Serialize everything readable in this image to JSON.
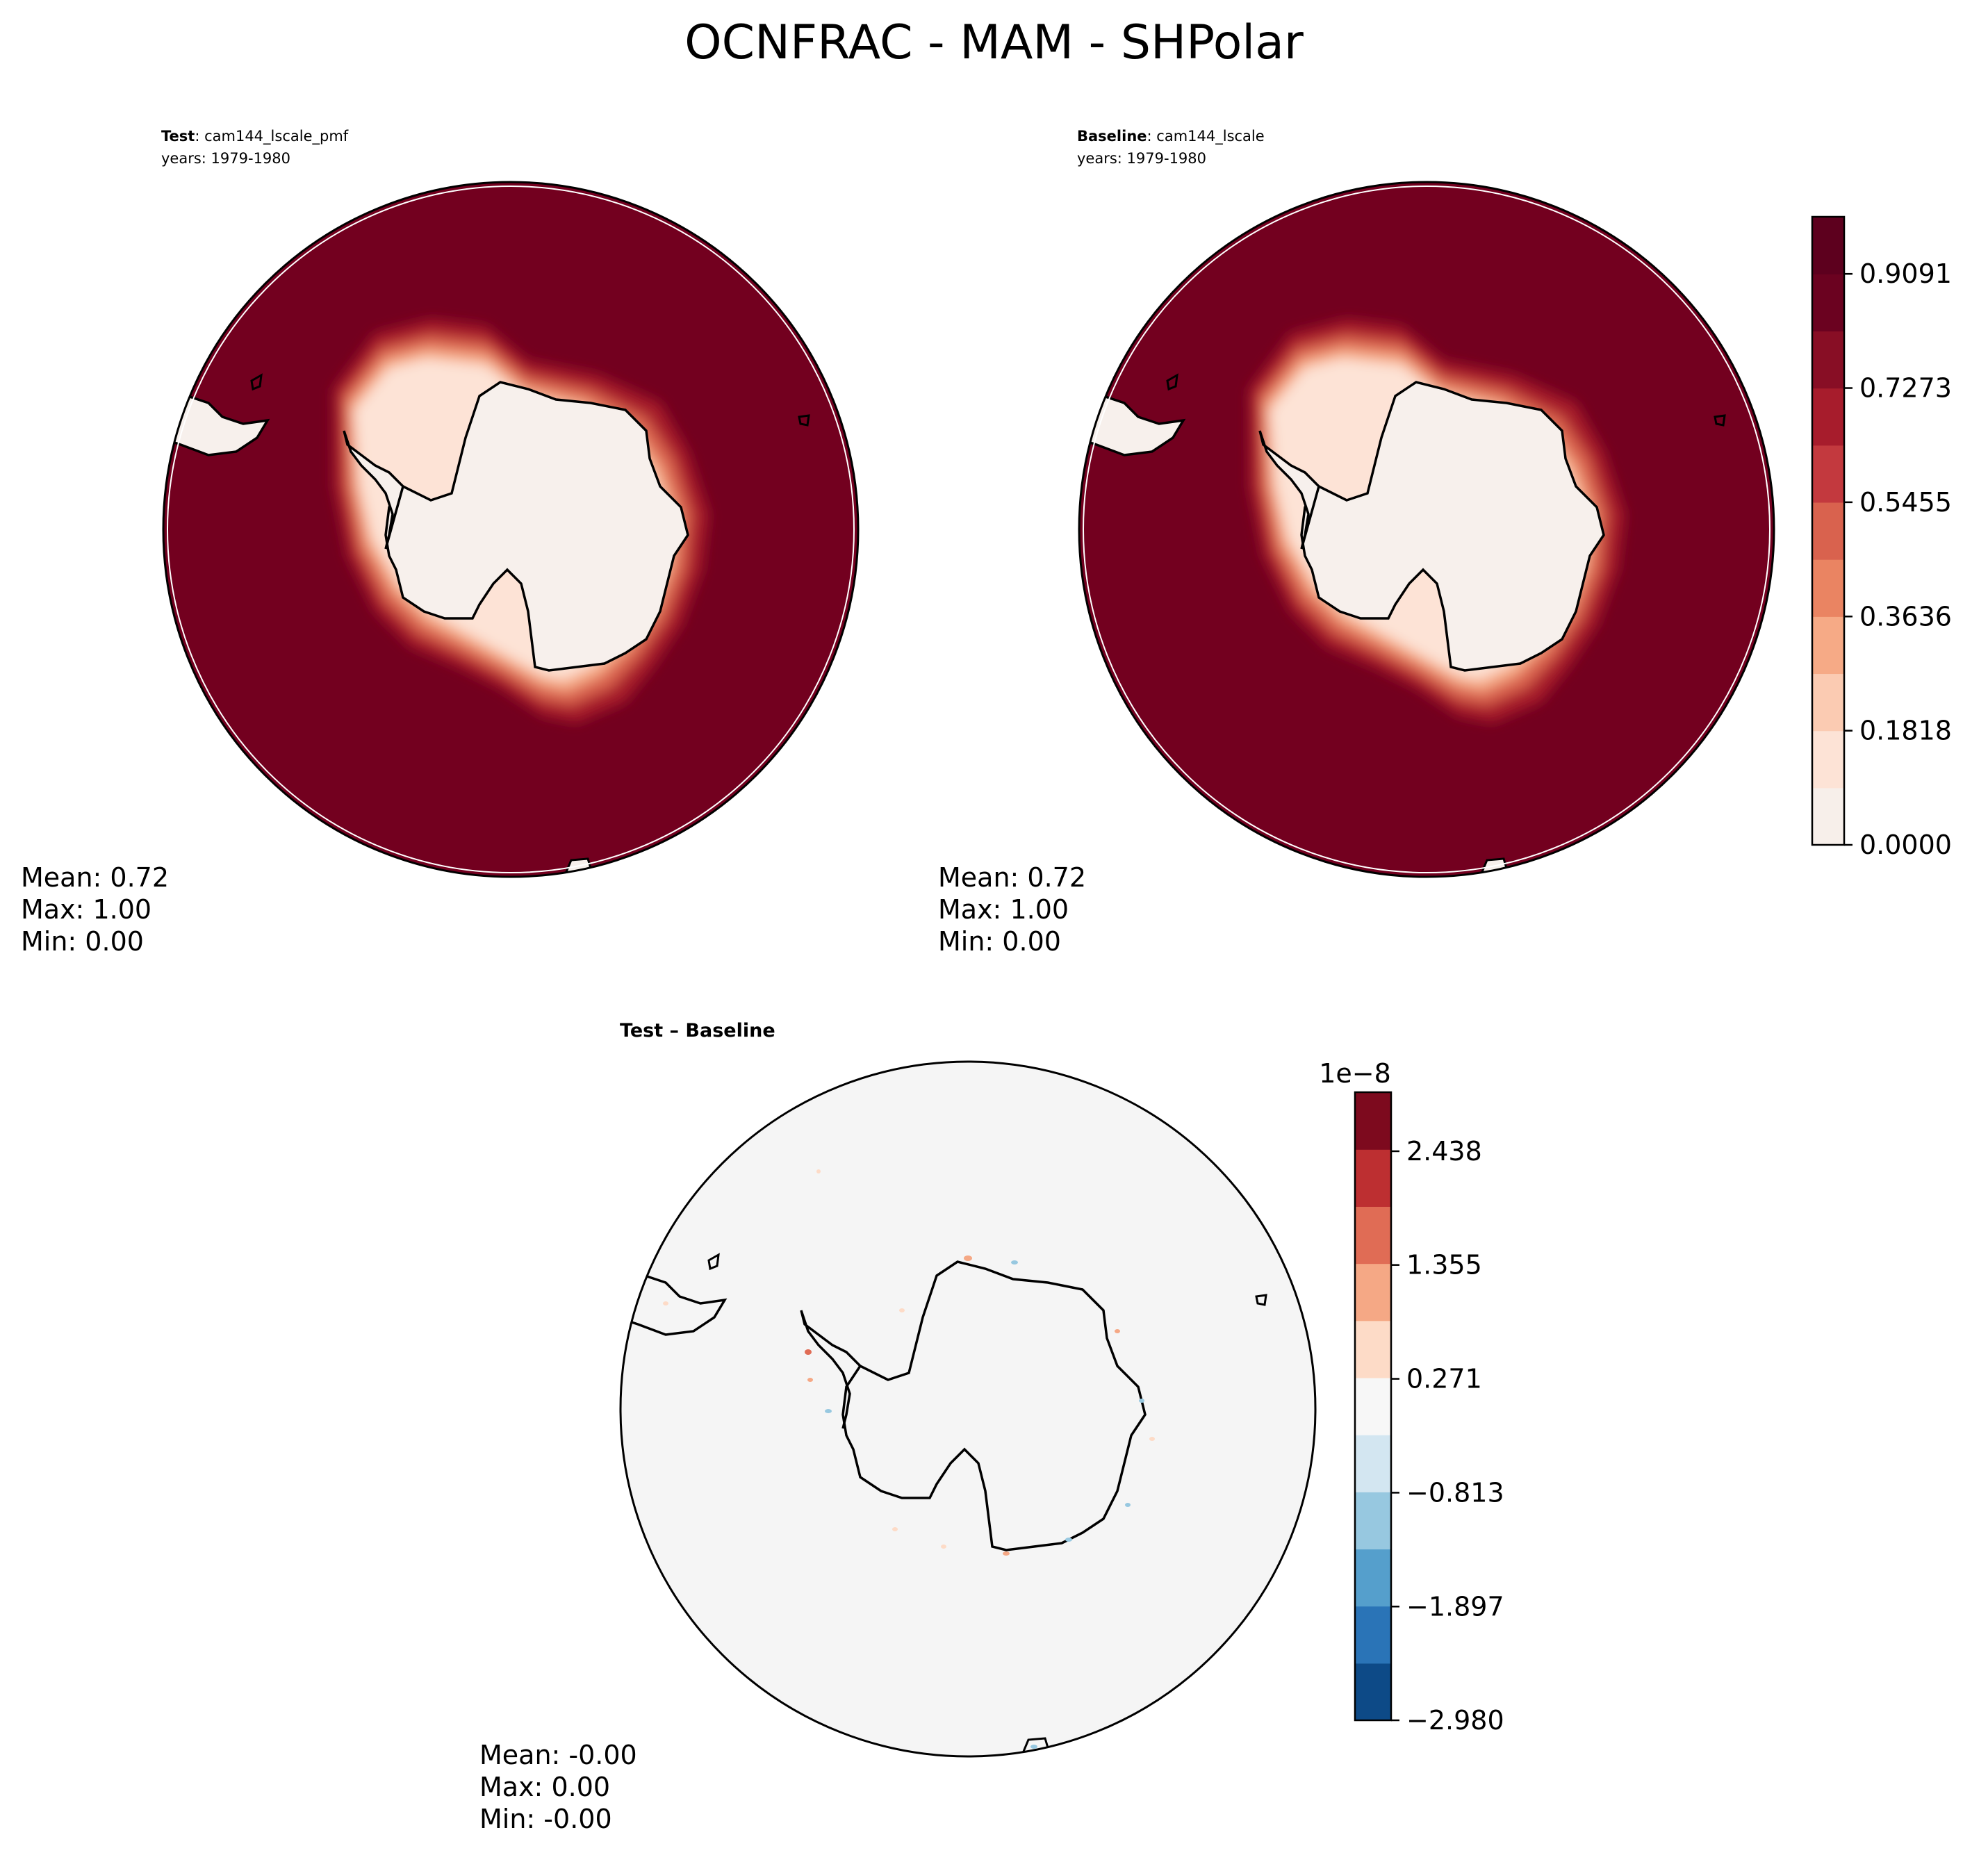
{
  "figure": {
    "title": "OCNFRAC - MAM - SHPolar"
  },
  "panels": {
    "test": {
      "label": "Test",
      "case": "cam144_lscale_pmf",
      "years": "years: 1979-1980",
      "stats": {
        "mean": "Mean:  0.72",
        "max": "Max:  1.00",
        "min": "Min:  0.00"
      }
    },
    "baseline": {
      "label": "Baseline",
      "case": "cam144_lscale",
      "years": "years: 1979-1980",
      "stats": {
        "mean": "Mean:  0.72",
        "max": "Max:  1.00",
        "min": "Min:  0.00"
      }
    },
    "diff": {
      "label": "Test – Baseline",
      "stats": {
        "mean": "Mean: -0.00",
        "max": "Max:  0.00",
        "min": "Min: -0.00"
      }
    }
  },
  "chart_data": [
    {
      "type": "heatmap",
      "panel": "test",
      "projection": "south-polar-stereographic",
      "field_summary": {
        "mean": 0.72,
        "max": 1.0,
        "min": 0.0
      },
      "ocean_color": "#67001f",
      "land_color": "#f7f0ec"
    },
    {
      "type": "heatmap",
      "panel": "baseline",
      "projection": "south-polar-stereographic",
      "field_summary": {
        "mean": 0.72,
        "max": 1.0,
        "min": 0.0
      },
      "ocean_color": "#67001f",
      "land_color": "#f7f0ec"
    },
    {
      "type": "heatmap",
      "panel": "diff",
      "projection": "south-polar-stereographic",
      "field_summary": {
        "mean": -0.0,
        "max": 0.0,
        "min": -0.0
      },
      "background_color": "#f5f5f5"
    }
  ],
  "colorbars": {
    "main": {
      "range": [
        0.0,
        1.0
      ],
      "levels": 11,
      "colors": [
        "#f7efea",
        "#fde3d6",
        "#fbcbb2",
        "#f6aa86",
        "#ea8462",
        "#d9624e",
        "#c3393e",
        "#a71c2c",
        "#880e25",
        "#6b0220",
        "#5d001e"
      ],
      "tick_values": [
        0.0,
        0.1818,
        0.3636,
        0.5455,
        0.7273,
        0.9091
      ],
      "tick_labels": [
        "0.0000",
        "0.1818",
        "0.3636",
        "0.5455",
        "0.7273",
        "0.9091"
      ]
    },
    "diff": {
      "range": [
        -2.98,
        3.0
      ],
      "levels": 11,
      "offset_label": "1e−8",
      "colors": [
        "#0d4a87",
        "#2a74b7",
        "#559fcc",
        "#97c8e0",
        "#d3e6f1",
        "#f7f7f7",
        "#fddbc7",
        "#f5a885",
        "#e06c55",
        "#bd2f31",
        "#7d0a1e"
      ],
      "tick_values": [
        -2.98,
        -1.897,
        -0.813,
        0.271,
        1.355,
        2.438
      ],
      "tick_labels": [
        "−2.980",
        "−1.897",
        "−0.813",
        "0.271",
        "1.355",
        "2.438"
      ]
    }
  }
}
